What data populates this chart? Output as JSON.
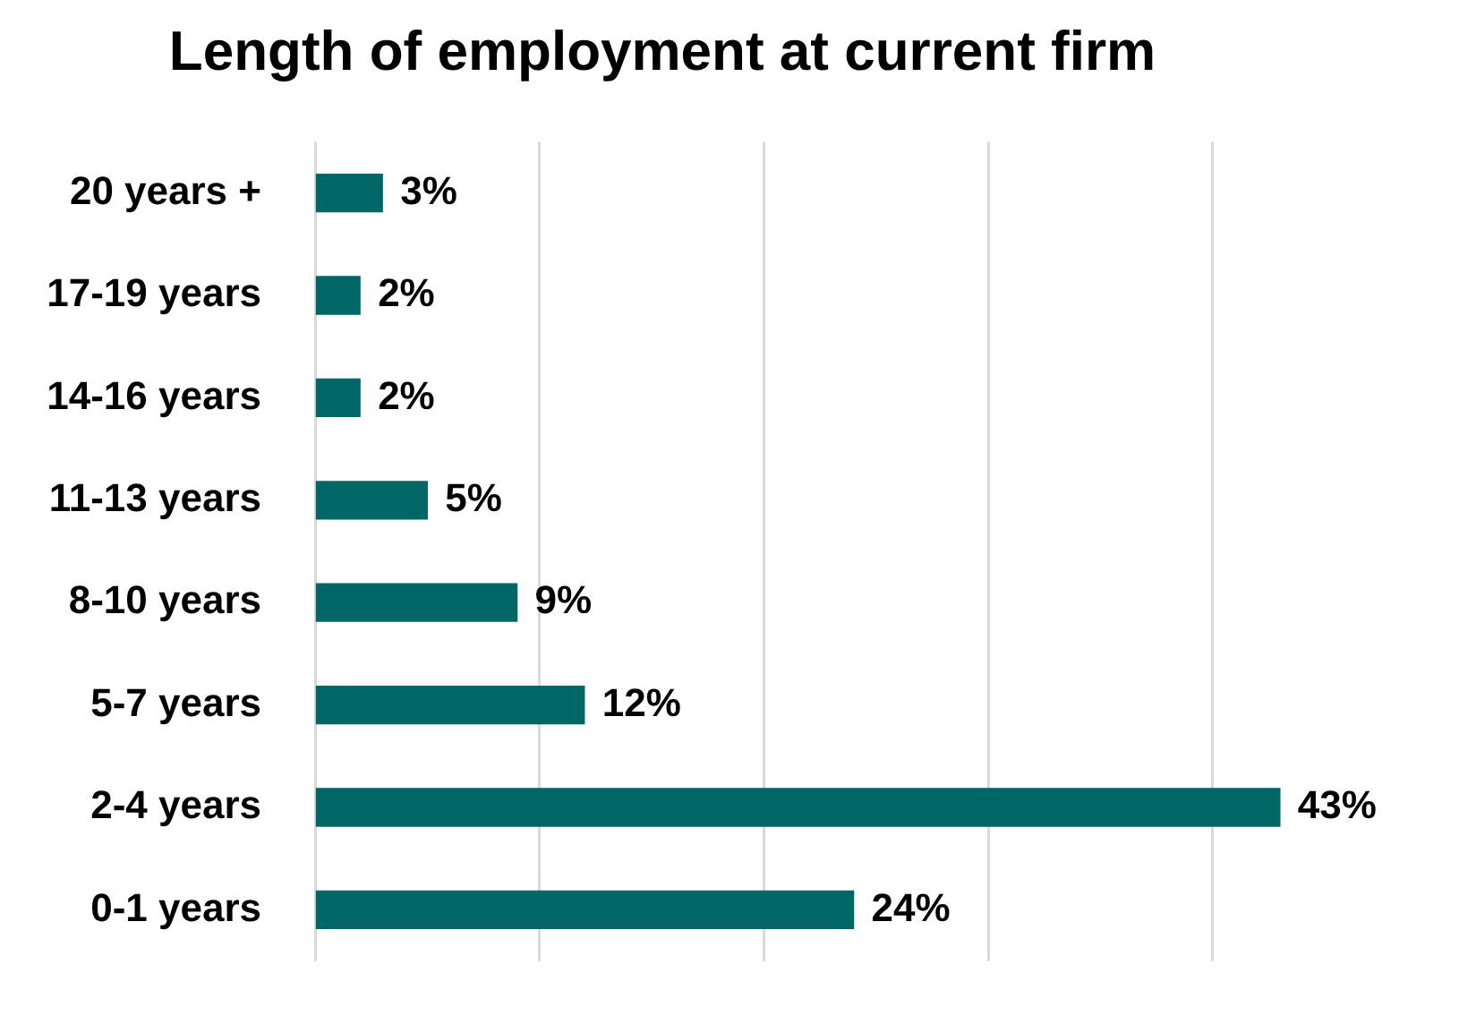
{
  "chart_data": {
    "type": "bar",
    "orientation": "horizontal",
    "title": "Length of employment at current firm",
    "categories": [
      "20 years +",
      "17-19 years",
      "14-16 years",
      "11-13 years",
      "8-10 years",
      "5-7 years",
      "2-4 years",
      "0-1 years"
    ],
    "values": [
      3,
      2,
      2,
      5,
      9,
      12,
      43,
      24
    ],
    "value_labels": [
      "3%",
      "2%",
      "2%",
      "5%",
      "9%",
      "12%",
      "43%",
      "24%"
    ],
    "color": "#006666",
    "xticks": [
      {
        "value": 0,
        "label": null
      },
      {
        "value": 10,
        "label": null
      },
      {
        "value": 20,
        "label": null
      },
      {
        "value": 30,
        "label": null
      },
      {
        "value": 40,
        "label": null
      }
    ],
    "grid": "x",
    "tick_labels": "y",
    "legend": false
  }
}
